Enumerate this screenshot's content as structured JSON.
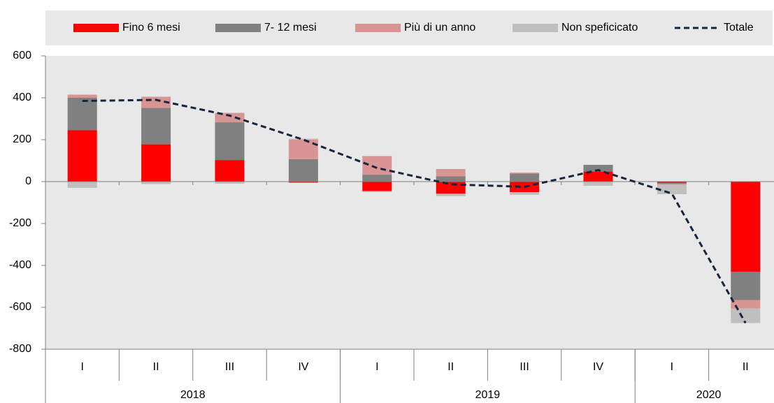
{
  "chart_data": {
    "type": "bar",
    "stacked": true,
    "categories": [
      "I",
      "II",
      "III",
      "IV",
      "I",
      "II",
      "III",
      "IV",
      "I",
      "II"
    ],
    "group_labels": [
      "2018",
      "2019",
      "2020"
    ],
    "group_sizes": [
      4,
      4,
      2
    ],
    "series": [
      {
        "name": "Fino 6 mesi",
        "color": "#ff0000",
        "values": [
          245,
          178,
          103,
          -5,
          -45,
          -58,
          -50,
          48,
          -5,
          -430
        ]
      },
      {
        "name": "7- 12 mesi",
        "color": "#808080",
        "values": [
          155,
          174,
          180,
          107,
          33,
          25,
          38,
          32,
          -5,
          -135
        ]
      },
      {
        "name": "Più di un anno",
        "color": "#d99594",
        "values": [
          15,
          53,
          45,
          93,
          89,
          35,
          5,
          0,
          -5,
          -40
        ]
      },
      {
        "name": "Non speficicato",
        "color": "#bfbfbf",
        "values": [
          -30,
          -12,
          -10,
          5,
          -5,
          -12,
          -13,
          -20,
          -45,
          -70
        ]
      },
      {
        "name": "Totale",
        "type": "line",
        "color": "#17253f",
        "dashed": true,
        "values": [
          385,
          390,
          315,
          200,
          65,
          -13,
          -25,
          55,
          -57,
          -675
        ]
      }
    ],
    "ylim": [
      -800,
      600
    ],
    "yticks": [
      -800,
      -600,
      -400,
      -200,
      0,
      200,
      400,
      600
    ],
    "legend": "top"
  }
}
